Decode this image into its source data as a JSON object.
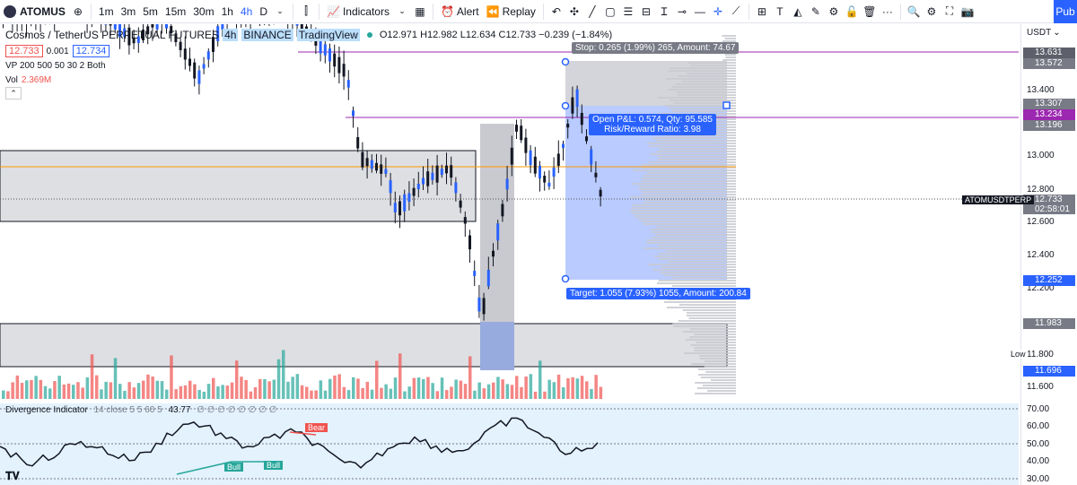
{
  "toolbar": {
    "symbol": "ATOMUS",
    "intervals": [
      "1m",
      "3m",
      "5m",
      "15m",
      "30m",
      "1h",
      "4h",
      "D"
    ],
    "active_interval": "4h",
    "indicators_label": "Indicators",
    "alert_label": "Alert",
    "replay_label": "Replay",
    "publish_label": "Pub"
  },
  "legend": {
    "title": "Cosmos / TetherUS PERPETUAL FUTURES",
    "interval": "4h",
    "exchange": "BINANCE",
    "source": "TradingView",
    "ohlc": "O12.971 H12.982 L12.634 C12.733 −0.239 (−1.84%)",
    "bid": "12.733",
    "spread": "0.001",
    "ask": "12.734",
    "vp": "VP 200 500 50 30 2 Both",
    "vol_label": "Vol",
    "vol_value": "2.369M"
  },
  "position": {
    "stop_label": "Stop: 0.265 (1.99%) 265, Amount: 74.67",
    "open_pnl": "Open P&L: 0.574, Qty: 95.585",
    "rr": "Risk/Reward Ratio: 3.98",
    "target_label": "Target: 1.055 (7.93%) 1055, Amount: 200.84"
  },
  "indicator": {
    "title": "Divergence Indicator",
    "params": "14 close 5 5 60 5",
    "value": "43.77",
    "empties": "∅ ∅ ∅ ∅ ∅ ∅ ∅ ∅",
    "bear_label": "Bear",
    "bull_label_1": "Bull",
    "bull_label_2": "Bull"
  },
  "scale": {
    "currency": "USDT",
    "ticks": [
      "13.400",
      "13.000",
      "12.800",
      "12.600",
      "12.400",
      "12.200",
      "11.800",
      "11.600"
    ],
    "tags": [
      {
        "text": "13.631",
        "color": "#5d606b"
      },
      {
        "text": "13.572",
        "color": "#787b86"
      },
      {
        "text": "13.307",
        "color": "#787b86"
      },
      {
        "text": "13.234",
        "color": "#9c27b0"
      },
      {
        "text": "13.196",
        "color": "#787b86"
      },
      {
        "text": "12.252",
        "color": "#2962ff"
      },
      {
        "text": "11.983",
        "color": "#787b86"
      },
      {
        "text": "11.696",
        "color": "#2962ff"
      }
    ],
    "current_price": "12.733",
    "countdown": "02:58:01",
    "symbol_tag": "ATOMUSDTPERP",
    "low_label": "Low",
    "low_value": "11.800",
    "ind_ticks": [
      "70.00",
      "60.00",
      "50.00",
      "40.00",
      "30.00"
    ]
  },
  "colors": {
    "up": "#26a69a",
    "down": "#ef5350",
    "accent": "#2962ff",
    "purple": "#9c27b0",
    "orange": "#ff9800"
  }
}
